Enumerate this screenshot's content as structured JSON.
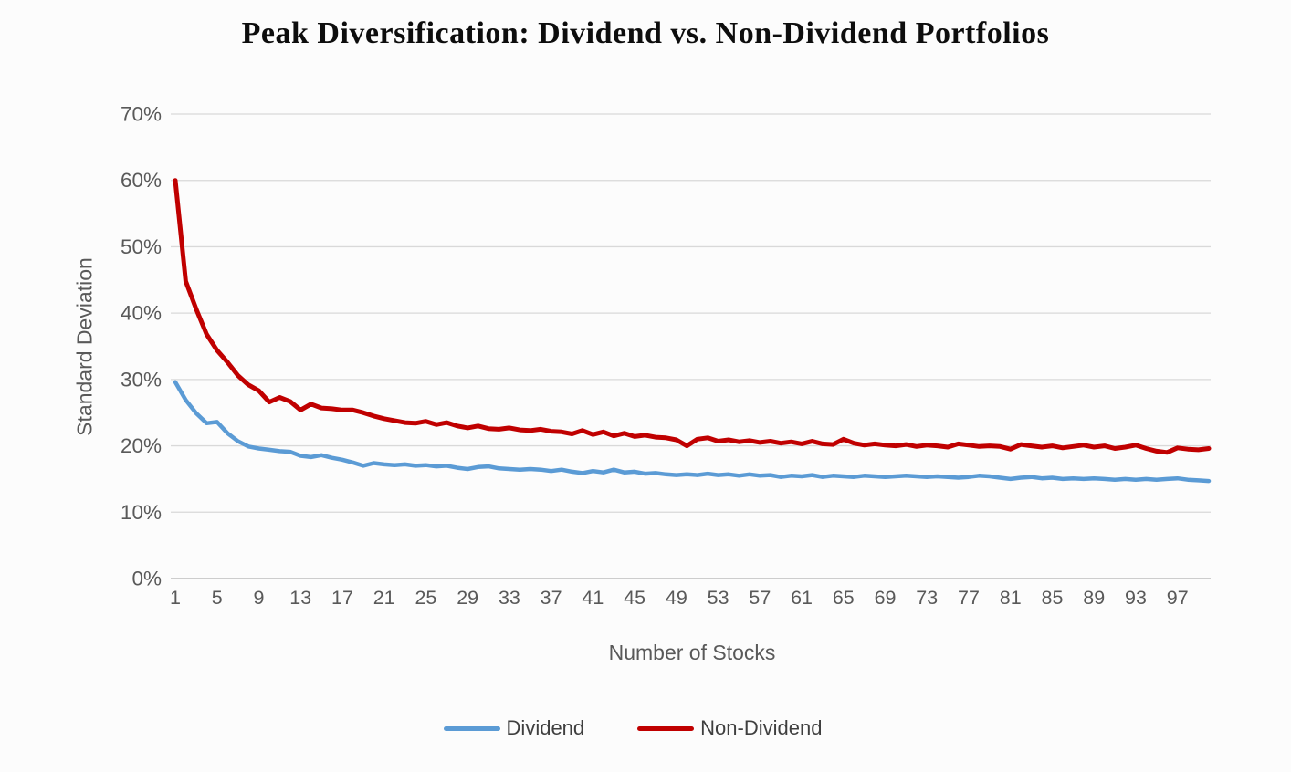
{
  "chart_data": {
    "type": "line",
    "title": "Peak Diversification: Dividend vs. Non-Dividend Portfolios",
    "xlabel": "Number of Stocks",
    "ylabel": "Standard Deviation",
    "x_range": [
      1,
      100
    ],
    "ylim_pct": [
      0,
      70
    ],
    "y_ticks_pct": [
      0,
      10,
      20,
      30,
      40,
      50,
      60,
      70
    ],
    "y_tick_suffix": "%",
    "x_tick_labels": [
      1,
      5,
      9,
      13,
      17,
      21,
      25,
      29,
      33,
      37,
      41,
      45,
      49,
      53,
      57,
      61,
      65,
      69,
      73,
      77,
      81,
      85,
      89,
      93,
      97
    ],
    "grid": "horizontal",
    "gridline_color": "#d9d9d9",
    "axis_line_color": "#bdbdbd",
    "tick_label_color": "#595959",
    "legend_position": "bottom-center",
    "series": [
      {
        "name": "Dividend",
        "color": "#5B9BD5",
        "values_pct": [
          29.6,
          26.9,
          24.9,
          23.4,
          23.6,
          21.9,
          20.7,
          19.9,
          19.6,
          19.4,
          19.2,
          19.1,
          18.5,
          18.3,
          18.6,
          18.2,
          17.9,
          17.5,
          17.0,
          17.4,
          17.2,
          17.1,
          17.2,
          17.0,
          17.1,
          16.9,
          17.0,
          16.7,
          16.5,
          16.8,
          16.9,
          16.6,
          16.5,
          16.4,
          16.5,
          16.4,
          16.2,
          16.4,
          16.1,
          15.9,
          16.2,
          16.0,
          16.4,
          16.0,
          16.1,
          15.8,
          15.9,
          15.7,
          15.6,
          15.7,
          15.6,
          15.8,
          15.6,
          15.7,
          15.5,
          15.7,
          15.5,
          15.6,
          15.3,
          15.5,
          15.4,
          15.6,
          15.3,
          15.5,
          15.4,
          15.3,
          15.5,
          15.4,
          15.3,
          15.4,
          15.5,
          15.4,
          15.3,
          15.4,
          15.3,
          15.2,
          15.3,
          15.5,
          15.4,
          15.2,
          15.0,
          15.2,
          15.3,
          15.1,
          15.2,
          15.0,
          15.1,
          15.0,
          15.1,
          15.0,
          14.9,
          15.0,
          14.9,
          15.0,
          14.9,
          15.0,
          15.1,
          14.9,
          14.8,
          14.7
        ]
      },
      {
        "name": "Non-Dividend",
        "color": "#C00000",
        "values_pct": [
          60.0,
          44.8,
          40.6,
          36.8,
          34.4,
          32.6,
          30.6,
          29.2,
          28.3,
          26.6,
          27.3,
          26.7,
          25.4,
          26.3,
          25.7,
          25.6,
          25.4,
          25.4,
          25.0,
          24.5,
          24.1,
          23.8,
          23.5,
          23.4,
          23.7,
          23.2,
          23.5,
          23.0,
          22.7,
          23.0,
          22.6,
          22.5,
          22.7,
          22.4,
          22.3,
          22.5,
          22.2,
          22.1,
          21.8,
          22.3,
          21.7,
          22.1,
          21.5,
          21.9,
          21.4,
          21.6,
          21.3,
          21.2,
          20.9,
          20.0,
          21.0,
          21.2,
          20.7,
          20.9,
          20.6,
          20.8,
          20.5,
          20.7,
          20.4,
          20.6,
          20.3,
          20.7,
          20.3,
          20.2,
          21.0,
          20.4,
          20.1,
          20.3,
          20.1,
          20.0,
          20.2,
          19.9,
          20.1,
          20.0,
          19.8,
          20.3,
          20.1,
          19.9,
          20.0,
          19.9,
          19.5,
          20.2,
          20.0,
          19.8,
          20.0,
          19.7,
          19.9,
          20.1,
          19.8,
          20.0,
          19.6,
          19.8,
          20.1,
          19.6,
          19.2,
          19.0,
          19.7,
          19.5,
          19.4,
          19.6
        ]
      }
    ]
  }
}
